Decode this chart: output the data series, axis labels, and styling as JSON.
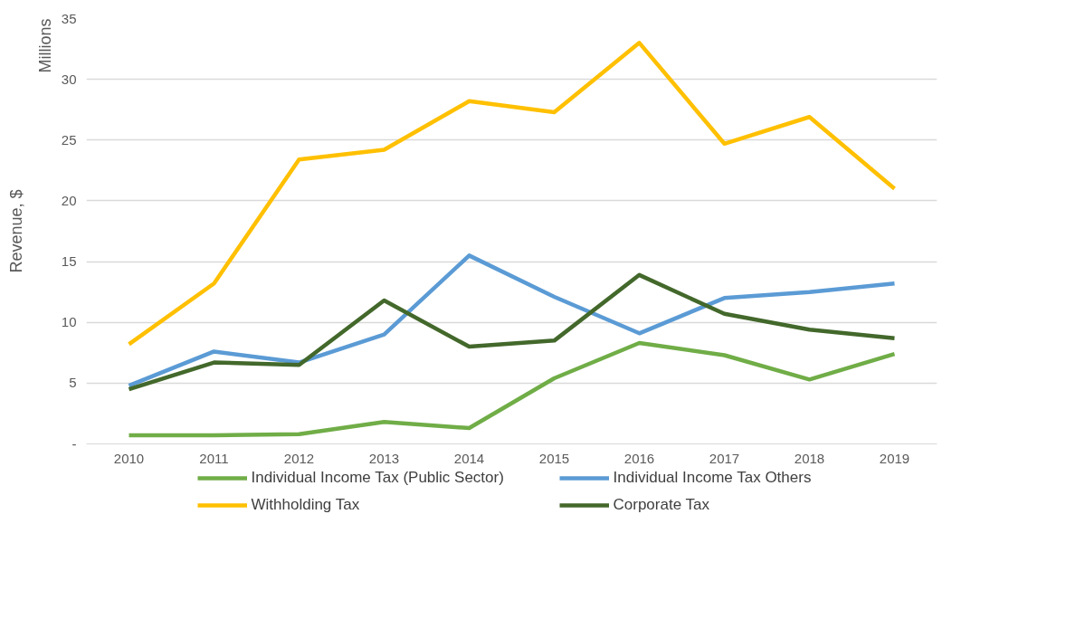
{
  "chart_data": {
    "type": "line",
    "ylabel": "Revenue, $",
    "annotations": [
      "Millions"
    ],
    "categories": [
      "2010",
      "2011",
      "2012",
      "2013",
      "2014",
      "2015",
      "2016",
      "2017",
      "2018",
      "2019"
    ],
    "series": [
      {
        "name": "Individual Income Tax (Public Sector)",
        "color": "#70ad47",
        "values": [
          0.7,
          0.7,
          0.8,
          1.8,
          1.3,
          5.4,
          8.3,
          7.3,
          5.3,
          7.4
        ]
      },
      {
        "name": "Individual Income Tax Others",
        "color": "#5b9bd5",
        "values": [
          4.8,
          7.6,
          6.7,
          9.0,
          15.5,
          12.1,
          9.1,
          12.0,
          12.5,
          13.2
        ]
      },
      {
        "name": "Withholding Tax",
        "color": "#ffc000",
        "values": [
          8.2,
          13.2,
          23.4,
          24.2,
          28.2,
          27.3,
          33.0,
          24.7,
          26.9,
          21.0
        ]
      },
      {
        "name": "Corporate Tax",
        "color": "#43682b",
        "values": [
          4.5,
          6.7,
          6.5,
          11.8,
          8.0,
          8.5,
          13.9,
          10.7,
          9.4,
          8.7
        ]
      }
    ],
    "ylim": [
      0,
      35
    ],
    "yticks": [
      {
        "value": 0,
        "label": "-"
      },
      5,
      10,
      15,
      20,
      25,
      30,
      35
    ],
    "grid": "y",
    "legend": "bottom",
    "marker": "none",
    "line_style": "solid"
  }
}
